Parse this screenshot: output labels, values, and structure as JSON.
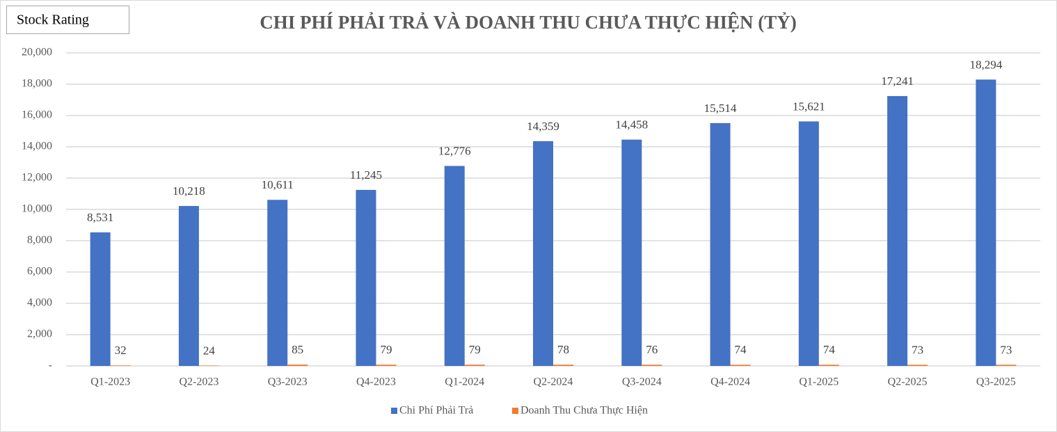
{
  "badge": "Stock Rating",
  "chart_data": {
    "type": "bar",
    "title": "CHI PHÍ PHẢI TRẢ VÀ DOANH THU CHƯA THỰC HIỆN (TỶ)",
    "categories": [
      "Q1-2023",
      "Q2-2023",
      "Q3-2023",
      "Q4-2023",
      "Q1-2024",
      "Q2-2024",
      "Q3-2024",
      "Q4-2024",
      "Q1-2025",
      "Q2-2025",
      "Q3-2025"
    ],
    "series": [
      {
        "name": "Chi Phí Phải Trả",
        "color": "#4472c4",
        "values": [
          8531,
          10218,
          10611,
          11245,
          12776,
          14359,
          14458,
          15514,
          15621,
          17241,
          18294
        ],
        "value_labels": [
          "8,531",
          "10,218",
          "10,611",
          "11,245",
          "12,776",
          "14,359",
          "14,458",
          "15,514",
          "15,621",
          "17,241",
          "18,294"
        ]
      },
      {
        "name": "Doanh Thu Chưa Thực Hiện",
        "color": "#ed7d31",
        "values": [
          32,
          24,
          85,
          79,
          79,
          78,
          76,
          74,
          74,
          73,
          73
        ]
      }
    ],
    "ylim": [
      0,
      20000
    ],
    "yticks": [
      {
        "value": 0,
        "label": "-"
      },
      {
        "value": 2000,
        "label": "2,000"
      },
      {
        "value": 4000,
        "label": "4,000"
      },
      {
        "value": 6000,
        "label": "6,000"
      },
      {
        "value": 8000,
        "label": "8,000"
      },
      {
        "value": 10000,
        "label": "10,000"
      },
      {
        "value": 12000,
        "label": "12,000"
      },
      {
        "value": 14000,
        "label": "14,000"
      },
      {
        "value": 16000,
        "label": "16,000"
      },
      {
        "value": 18000,
        "label": "18,000"
      },
      {
        "value": 20000,
        "label": "20,000"
      }
    ],
    "grid": true,
    "legend": "bottom"
  }
}
